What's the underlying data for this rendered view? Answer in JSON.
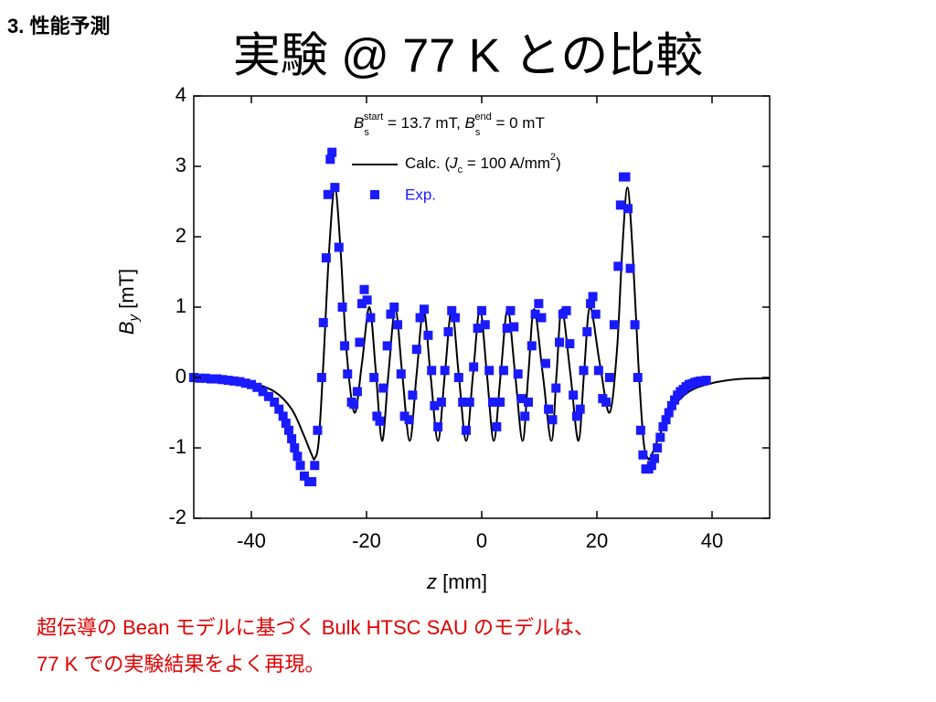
{
  "header": "3. 性能予測",
  "title": "実験 @ 77 K との比較",
  "caption": [
    "超伝導の Bean モデルに基づく Bulk HTSC SAU のモデルは、",
    "77 K での実験結果をよく再現。"
  ],
  "chart_data": {
    "type": "line",
    "annotation": [
      "B",
      "s",
      "start",
      " = 13.7 mT, ",
      "B",
      "s",
      "end",
      " = 0 mT"
    ],
    "xlabel": [
      "z",
      " [mm]"
    ],
    "ylabel": [
      "B",
      "y",
      " [mT]"
    ],
    "xlim": [
      -50,
      50
    ],
    "xticks": [
      -40,
      -20,
      0,
      20,
      40
    ],
    "ylim": [
      -2,
      4
    ],
    "yticks": [
      -2,
      -1,
      0,
      1,
      2,
      3,
      4
    ],
    "series": [
      {
        "name": [
          "Calc. (",
          "J",
          "c",
          " = 100 A/mm",
          "2",
          ")"
        ],
        "type": "line",
        "color": "#000000",
        "x": [
          -50,
          -45,
          -40,
          -36,
          -33,
          -31,
          -29.5,
          -29,
          -28.3,
          -27.5,
          -26.5,
          -25.5,
          -24.5,
          -23.5,
          -22.1,
          -20.8,
          -19.5,
          -18.4,
          -17.3,
          -16.2,
          -15,
          -13.8,
          -12.5,
          -11.3,
          -10.1,
          -8.9,
          -7.6,
          -6.4,
          -5.2,
          -4,
          -2.7,
          -1.5,
          -0.3,
          0.9,
          2.1,
          3.3,
          4.5,
          5.8,
          7.1,
          8.1,
          9.1,
          10.6,
          12.1,
          13,
          13.9,
          15.4,
          16.8,
          17.8,
          18.8,
          20.5,
          22.2,
          23.5,
          24.4,
          25.3,
          26.2,
          27.2,
          28.1,
          28.9,
          29.5,
          31,
          33,
          36,
          40,
          45,
          50
        ],
        "values": [
          -0.01,
          -0.03,
          -0.08,
          -0.2,
          -0.45,
          -0.8,
          -1.1,
          -1.15,
          -0.9,
          0.2,
          1.8,
          2.7,
          1.8,
          0.4,
          -0.5,
          0.2,
          1.0,
          0.1,
          -0.9,
          0.05,
          0.97,
          0.05,
          -0.9,
          0.05,
          0.97,
          0.05,
          -0.9,
          0.05,
          0.97,
          0.05,
          -0.9,
          0.05,
          0.97,
          0.05,
          -0.9,
          0.05,
          0.97,
          0.05,
          -0.9,
          0.05,
          0.97,
          0.05,
          -0.9,
          0.05,
          0.97,
          0.05,
          -0.9,
          0.1,
          1.0,
          0.2,
          -0.5,
          0.4,
          1.8,
          2.7,
          1.8,
          0.2,
          -0.9,
          -1.15,
          -1.1,
          -0.8,
          -0.45,
          -0.2,
          -0.08,
          -0.02,
          -0.01
        ]
      },
      {
        "name": [
          "Exp."
        ],
        "type": "scatter",
        "color": "#1a1aff",
        "x": [
          -50,
          -49,
          -48,
          -47,
          -46,
          -45,
          -44,
          -43,
          -42,
          -41,
          -40,
          -39,
          -38,
          -37,
          -36,
          -35.2,
          -34.5,
          -34,
          -33.5,
          -33,
          -32.5,
          -32,
          -31.5,
          -30.8,
          -30,
          -29.5,
          -29,
          -28.5,
          -27.8,
          -27.5,
          -27,
          -26.7,
          -26.3,
          -26,
          -25.5,
          -24.8,
          -24.2,
          -23.8,
          -23.3,
          -22.6,
          -22.2,
          -21.6,
          -21.2,
          -20.8,
          -20.4,
          -19.9,
          -19.3,
          -18.7,
          -18.2,
          -17.7,
          -17.1,
          -16.4,
          -15.8,
          -15.2,
          -14.6,
          -14,
          -13.4,
          -12.6,
          -12,
          -11.3,
          -10.7,
          -10,
          -9.3,
          -8.7,
          -8.2,
          -7.6,
          -7,
          -6.4,
          -5.8,
          -5.2,
          -4.6,
          -4,
          -3.3,
          -2.7,
          -2.1,
          -1.4,
          -0.7,
          0,
          0.6,
          1.3,
          1.9,
          2.6,
          3.2,
          3.8,
          4.4,
          5,
          5.6,
          6.3,
          6.9,
          7.5,
          8.1,
          8.7,
          9.3,
          9.9,
          10.4,
          11.1,
          11.6,
          12.3,
          12.9,
          13.5,
          14.1,
          14.7,
          15.3,
          15.9,
          16.5,
          17.1,
          17.7,
          18.3,
          18.9,
          19.3,
          19.8,
          20.3,
          21,
          21.6,
          22.2,
          23,
          23.7,
          24.1,
          24.6,
          25,
          25.4,
          25.8,
          26.6,
          27.1,
          27.6,
          28,
          28.5,
          29,
          29.5,
          30,
          30.5,
          31,
          31.5,
          32,
          32.5,
          33,
          33.5,
          34,
          34.5,
          35,
          35.5,
          36,
          36.5,
          37,
          37.5,
          38,
          38.5,
          39
        ],
        "values": [
          0,
          -0.01,
          -0.01,
          -0.02,
          -0.02,
          -0.03,
          -0.04,
          -0.05,
          -0.06,
          -0.08,
          -0.1,
          -0.14,
          -0.2,
          -0.27,
          -0.35,
          -0.45,
          -0.55,
          -0.65,
          -0.75,
          -0.87,
          -1.0,
          -1.12,
          -1.25,
          -1.4,
          -1.48,
          -1.48,
          -1.25,
          -0.75,
          0,
          0.78,
          1.7,
          2.6,
          3.1,
          3.2,
          2.7,
          1.85,
          1.0,
          0.45,
          0.05,
          -0.35,
          -0.38,
          -0.2,
          0.5,
          1.05,
          1.25,
          1.1,
          0.85,
          0,
          -0.55,
          -0.62,
          -0.15,
          0.45,
          0.9,
          1.0,
          0.75,
          0.05,
          -0.55,
          -0.6,
          -0.25,
          0.4,
          0.85,
          0.97,
          0.6,
          0.1,
          -0.4,
          -0.7,
          -0.35,
          0.1,
          0.65,
          0.95,
          0.85,
          0,
          -0.35,
          -0.75,
          -0.35,
          0.15,
          0.7,
          0.95,
          0.75,
          0.1,
          -0.35,
          -0.7,
          -0.35,
          0.1,
          0.7,
          0.95,
          0.72,
          0.05,
          -0.3,
          -0.55,
          -0.35,
          0.45,
          0.9,
          1.05,
          0.85,
          0.2,
          -0.45,
          -0.6,
          -0.15,
          0.5,
          0.9,
          0.95,
          0.48,
          -0.25,
          -0.55,
          -0.45,
          0.1,
          0.65,
          1.05,
          1.15,
          0.9,
          0.1,
          -0.3,
          -0.35,
          0,
          0.75,
          1.58,
          2.45,
          2.85,
          2.85,
          2.4,
          1.55,
          0.75,
          0,
          -0.75,
          -1.1,
          -1.3,
          -1.3,
          -1.25,
          -1.15,
          -1.0,
          -0.85,
          -0.7,
          -0.6,
          -0.5,
          -0.4,
          -0.32,
          -0.25,
          -0.2,
          -0.17,
          -0.13,
          -0.1,
          -0.09,
          -0.07,
          -0.06,
          -0.05,
          -0.05,
          -0.04
        ]
      }
    ]
  }
}
